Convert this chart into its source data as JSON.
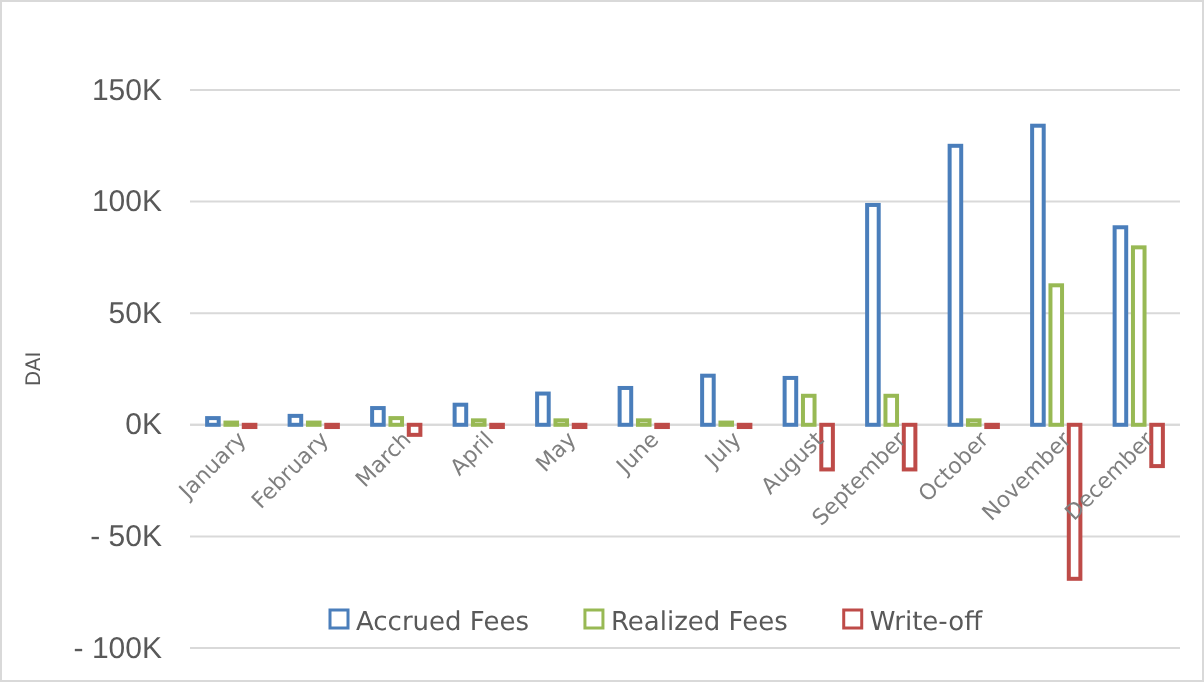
{
  "chart_data": {
    "type": "bar",
    "ylabel": "DAI",
    "categories": [
      "January",
      "February",
      "March",
      "April",
      "May",
      "June",
      "July",
      "August",
      "September",
      "October",
      "November",
      "December"
    ],
    "series": [
      {
        "name": "Accrued Fees",
        "color": "#4a7ebb",
        "values": [
          3000,
          4000,
          7500,
          9000,
          14000,
          16500,
          22000,
          21000,
          98500,
          125000,
          134000,
          88500
        ]
      },
      {
        "name": "Realized Fees",
        "color": "#98b954",
        "values": [
          1000,
          1000,
          3000,
          2000,
          2000,
          2000,
          1000,
          13000,
          13000,
          2000,
          62500,
          79500
        ]
      },
      {
        "name": "Write-off",
        "color": "#be4b48",
        "values": [
          -1000,
          -1000,
          -4500,
          -1000,
          -1000,
          -1000,
          -1000,
          -20000,
          -20000,
          -1000,
          -69000,
          -18500
        ]
      }
    ],
    "ylim": [
      -100000,
      150000
    ],
    "yticks": [
      {
        "value": -100000,
        "label": "- 100K"
      },
      {
        "value": -50000,
        "label": "- 50K"
      },
      {
        "value": 0,
        "label": "0K"
      },
      {
        "value": 50000,
        "label": "50K"
      },
      {
        "value": 100000,
        "label": "100K"
      },
      {
        "value": 150000,
        "label": "150K"
      }
    ],
    "grid": "y",
    "legend": "bottom"
  }
}
